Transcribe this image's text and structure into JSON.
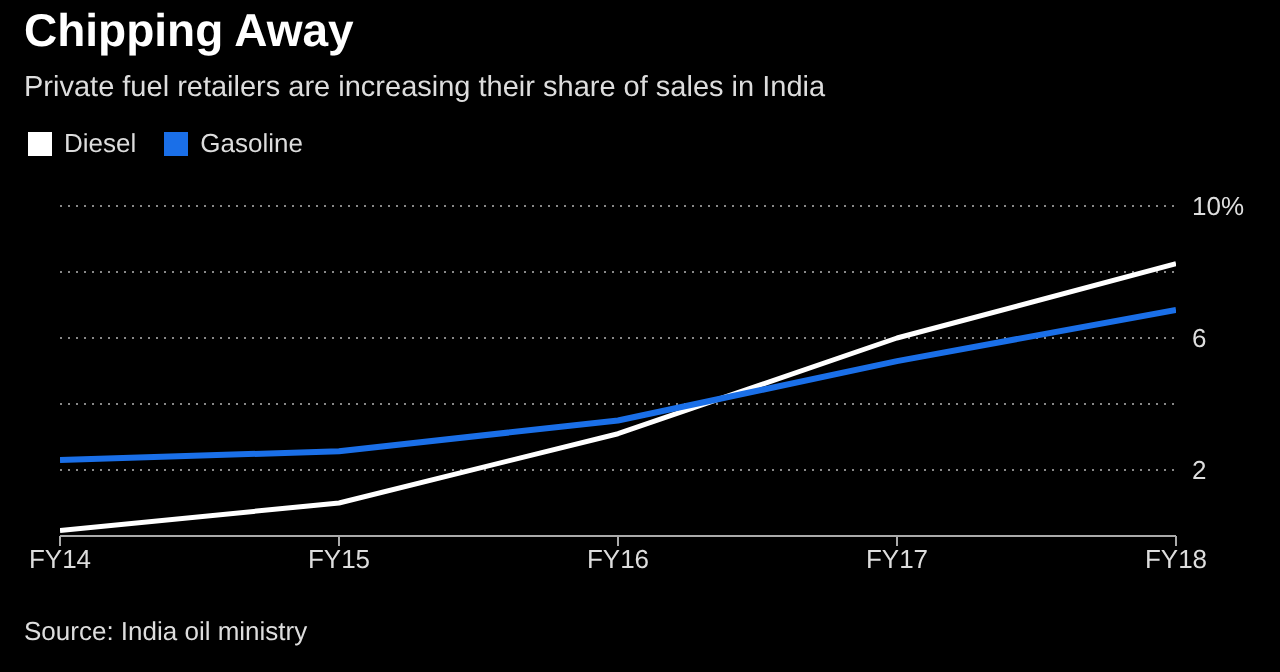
{
  "chart_data": {
    "type": "line",
    "title": "Chipping Away",
    "subtitle": "Private fuel retailers are increasing their share of sales in India",
    "categories": [
      "FY14",
      "FY15",
      "FY16",
      "FY17",
      "FY18"
    ],
    "series": [
      {
        "name": "Diesel",
        "color": "#ffffff",
        "values": [
          0.17,
          1.0,
          3.1,
          6.0,
          8.25
        ]
      },
      {
        "name": "Gasoline",
        "color": "#1a6fe8",
        "values": [
          2.3,
          2.57,
          3.5,
          5.3,
          6.85
        ]
      }
    ],
    "ylim": [
      0,
      10
    ],
    "yticks": [
      {
        "value": 0,
        "label": null
      },
      2,
      {
        "value": 4,
        "label": null
      },
      6,
      {
        "value": 8,
        "label": null
      },
      {
        "value": 10,
        "label": "10%"
      }
    ],
    "grid": "y",
    "legend": "top left",
    "marker": "none",
    "line_style": "solid",
    "annotations": [
      "Source: India oil ministry"
    ]
  }
}
